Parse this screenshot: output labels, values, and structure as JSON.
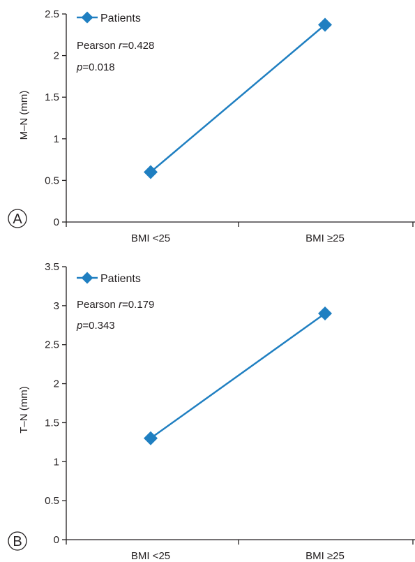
{
  "chart_data": [
    {
      "type": "line",
      "panel_label": "A",
      "categories": [
        "BMI <25",
        "BMI ≥25"
      ],
      "series": [
        {
          "name": "Patients",
          "values": [
            0.6,
            2.37
          ],
          "color": "#1f7fc1"
        }
      ],
      "ylabel": "M–N (mm)",
      "yticks": [
        0,
        0.5,
        1,
        1.5,
        2,
        2.5
      ],
      "ytick_labels": [
        "0",
        "0.5",
        "1",
        "1.5",
        "2",
        "2.5"
      ],
      "ylim": [
        0,
        2.5
      ],
      "stats": {
        "r_prefix": "Pearson ",
        "r_symbol": "r",
        "r_value": "=0.428",
        "p_symbol": "p",
        "p_value": "=0.018"
      },
      "legend_position": "top-left",
      "grid": false
    },
    {
      "type": "line",
      "panel_label": "B",
      "categories": [
        "BMI <25",
        "BMI ≥25"
      ],
      "series": [
        {
          "name": "Patients",
          "values": [
            1.3,
            2.9
          ],
          "color": "#1f7fc1"
        }
      ],
      "ylabel": "T–N (mm)",
      "yticks": [
        0,
        0.5,
        1,
        1.5,
        2,
        2.5,
        3,
        3.5
      ],
      "ytick_labels": [
        "0",
        "0.5",
        "1",
        "1.5",
        "2",
        "2.5",
        "3",
        "3.5"
      ],
      "ylim": [
        0,
        3.5
      ],
      "stats": {
        "r_prefix": "Pearson ",
        "r_symbol": "r",
        "r_value": "=0.179",
        "p_symbol": "p",
        "p_value": "=0.343"
      },
      "legend_position": "top-left",
      "grid": false
    }
  ]
}
